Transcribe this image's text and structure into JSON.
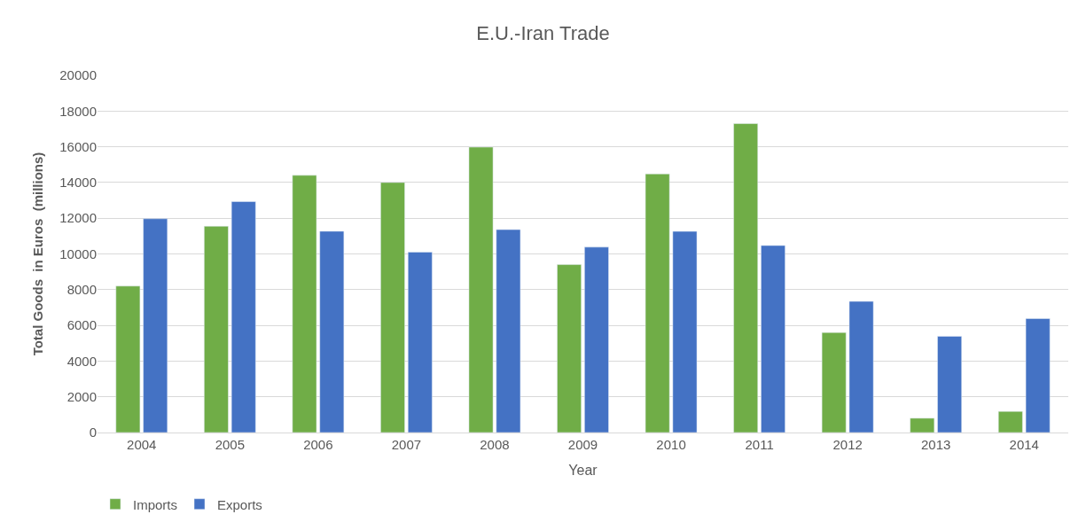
{
  "chart_data": {
    "type": "bar",
    "title": "E.U.-Iran Trade",
    "xlabel": "Year",
    "ylabel": "Total Goods  in Euros  (millions)",
    "categories": [
      "2004",
      "2005",
      "2006",
      "2007",
      "2008",
      "2009",
      "2010",
      "2011",
      "2012",
      "2013",
      "2014"
    ],
    "series": [
      {
        "name": "Imports",
        "color": "#70ad47",
        "values": [
          8200,
          11550,
          14400,
          14000,
          15980,
          9400,
          14480,
          17300,
          5600,
          800,
          1180
        ]
      },
      {
        "name": "Exports",
        "color": "#4472c4",
        "values": [
          11970,
          12930,
          11270,
          10100,
          11360,
          10380,
          11260,
          10470,
          7340,
          5390,
          6380
        ]
      }
    ],
    "ylim": [
      0,
      20000
    ],
    "yticks": [
      0,
      2000,
      4000,
      6000,
      8000,
      10000,
      12000,
      14000,
      16000,
      18000,
      20000
    ],
    "grid": "y",
    "legend": "bottom left"
  }
}
